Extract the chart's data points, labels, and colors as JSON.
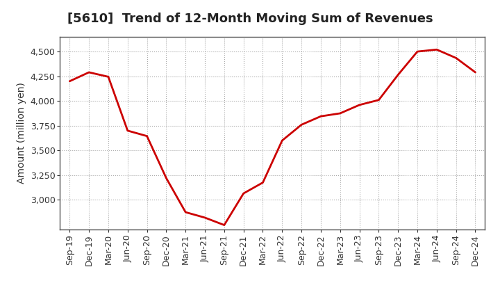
{
  "title": "[5610]  Trend of 12-Month Moving Sum of Revenues",
  "ylabel": "Amount (million yen)",
  "line_color": "#CC0000",
  "line_width": 2.0,
  "background_color": "#FFFFFF",
  "grid_color": "#AAAAAA",
  "x_labels": [
    "Sep-19",
    "Dec-19",
    "Mar-20",
    "Jun-20",
    "Sep-20",
    "Dec-20",
    "Mar-21",
    "Jun-21",
    "Sep-21",
    "Dec-21",
    "Mar-22",
    "Jun-22",
    "Sep-22",
    "Dec-22",
    "Mar-23",
    "Jun-23",
    "Sep-23",
    "Dec-23",
    "Mar-24",
    "Jun-24",
    "Sep-24",
    "Dec-24"
  ],
  "y_values": [
    4200,
    4290,
    4245,
    3700,
    3645,
    3220,
    2875,
    2820,
    2745,
    3065,
    3175,
    3600,
    3760,
    3845,
    3875,
    3960,
    4010,
    4265,
    4500,
    4520,
    4435,
    4290
  ],
  "ylim": [
    2700,
    4650
  ],
  "yticks": [
    3000,
    3250,
    3500,
    3750,
    4000,
    4250,
    4500
  ],
  "title_fontsize": 13,
  "label_fontsize": 10,
  "tick_fontsize": 9
}
